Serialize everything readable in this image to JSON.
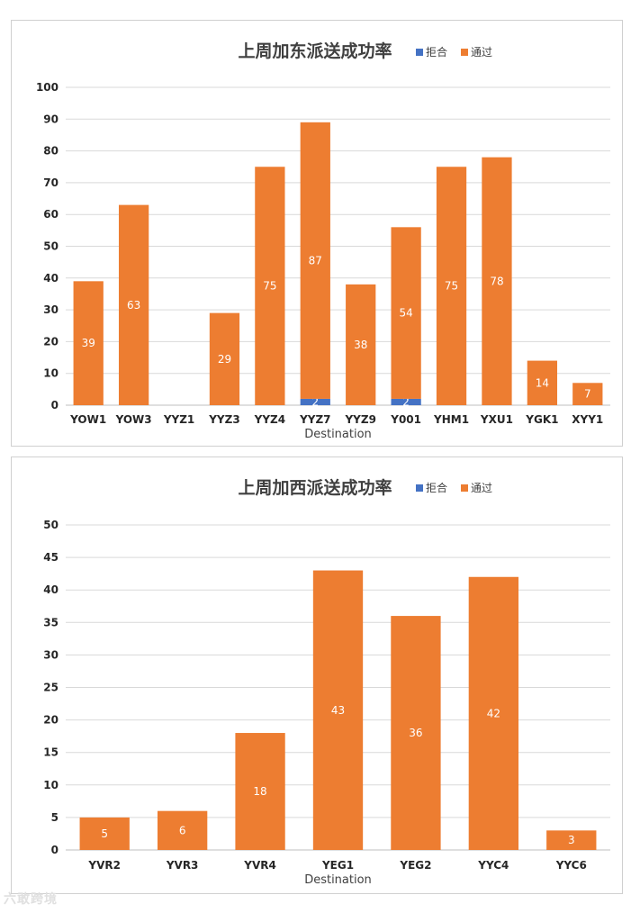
{
  "chart_data": [
    {
      "type": "bar",
      "stacked": true,
      "title": "上周加东派送成功率",
      "xlabel": "Destination",
      "ylabel": "",
      "ylim": [
        0,
        100
      ],
      "yticks": [
        0,
        10,
        20,
        30,
        40,
        50,
        60,
        70,
        80,
        90,
        100
      ],
      "grid": true,
      "legend_position": "top-right",
      "categories": [
        "YOW1",
        "YOW3",
        "YYZ1",
        "YYZ3",
        "YYZ4",
        "YYZ7",
        "YYZ9",
        "Y001",
        "YHM1",
        "YXU1",
        "YGK1",
        "XYY1"
      ],
      "series": [
        {
          "name": "拒合",
          "color": "#4472c4",
          "values": [
            0,
            0,
            0,
            0,
            0,
            2,
            0,
            2,
            0,
            0,
            0,
            0
          ]
        },
        {
          "name": "通过",
          "color": "#ed7d31",
          "values": [
            39,
            63,
            0,
            29,
            75,
            87,
            38,
            54,
            75,
            78,
            14,
            7
          ]
        }
      ]
    },
    {
      "type": "bar",
      "stacked": true,
      "title": "上周加西派送成功率",
      "xlabel": "Destination",
      "ylabel": "",
      "ylim": [
        0,
        50
      ],
      "yticks": [
        0,
        5,
        10,
        15,
        20,
        25,
        30,
        35,
        40,
        45,
        50
      ],
      "grid": true,
      "legend_position": "top-right",
      "categories": [
        "YVR2",
        "YVR3",
        "YVR4",
        "YEG1",
        "YEG2",
        "YYC4",
        "YYC6"
      ],
      "series": [
        {
          "name": "拒合",
          "color": "#4472c4",
          "values": [
            0,
            0,
            0,
            0,
            0,
            0,
            0
          ]
        },
        {
          "name": "通过",
          "color": "#ed7d31",
          "values": [
            5,
            6,
            18,
            43,
            36,
            42,
            3
          ]
        }
      ]
    }
  ],
  "watermark": "六敢跨境"
}
